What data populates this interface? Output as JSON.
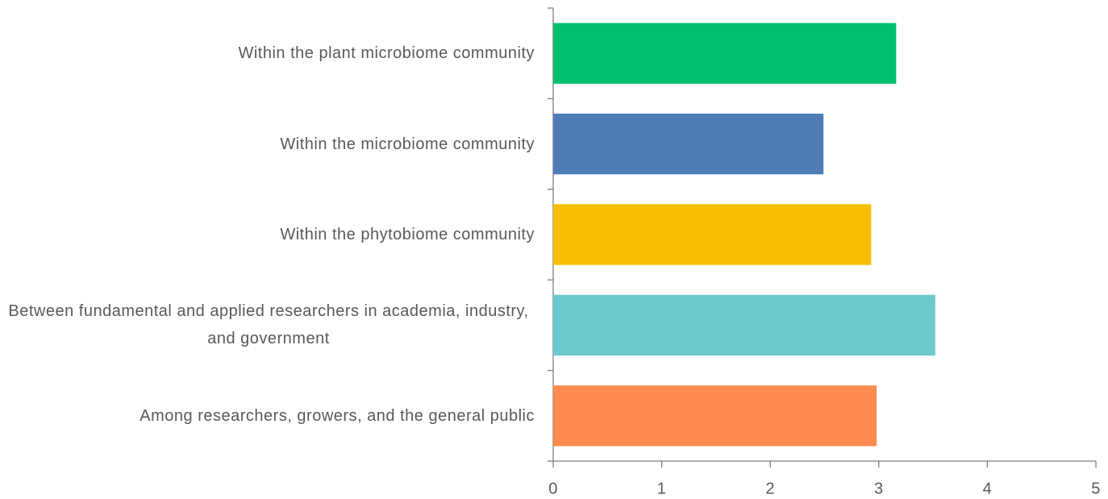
{
  "chart_data": {
    "type": "barh",
    "categories": [
      "Within the plant microbiome community",
      "Within the microbiome community",
      "Within the phytobiome community",
      "Between fundamental and applied researchers in academia, industry, and government",
      "Among researchers, growers, and the general public"
    ],
    "values": [
      3.16,
      2.49,
      2.93,
      3.52,
      2.98
    ],
    "colors": [
      "#00bf6f",
      "#507cb6",
      "#f9be00",
      "#6bc8cd",
      "#ff8b4f"
    ],
    "xlim": [
      0,
      5
    ],
    "xticks": [
      0,
      1,
      2,
      3,
      4,
      5
    ],
    "grid": false
  }
}
